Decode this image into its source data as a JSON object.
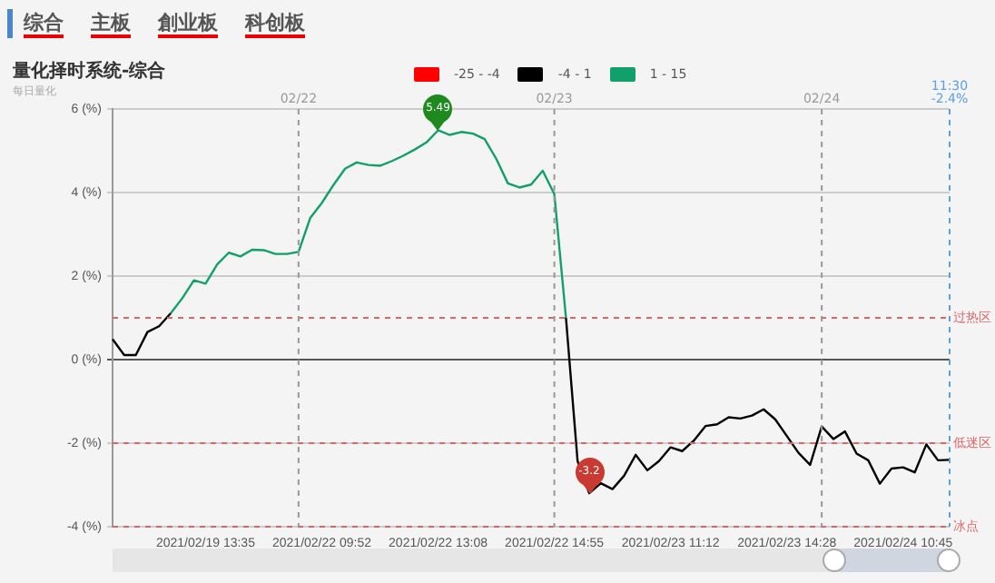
{
  "chart_data": {
    "type": "line",
    "title": "量化择时系统-综合",
    "subtitle": "每日量化",
    "annotations": [
      "综合",
      "主板",
      "創业板",
      "科创板",
      "02/22",
      "02/23",
      "02/24",
      "11:30\n-2.4%",
      {
        "text": "5.49",
        "x": "2021/02/22 13:08",
        "y": 5.49
      },
      {
        "text": "-3.2",
        "y": -3.2
      }
    ],
    "legend": "top",
    "grid": "y",
    "categories": [
      null,
      null,
      null,
      null,
      null,
      null,
      null,
      null,
      "2021/02/19 13:35",
      null,
      null,
      null,
      null,
      null,
      null,
      null,
      null,
      null,
      "2021/02/22 09:52",
      null,
      null,
      null,
      null,
      null,
      null,
      null,
      null,
      null,
      "2021/02/22 13:08",
      null,
      null,
      null,
      null,
      null,
      null,
      null,
      null,
      null,
      "2021/02/22 14:55",
      null,
      null,
      null,
      null,
      null,
      null,
      null,
      null,
      null,
      "2021/02/23 11:12",
      null,
      null,
      null,
      null,
      null,
      null,
      null,
      null,
      null,
      "2021/02/23 14:28",
      null,
      null,
      null,
      null,
      null,
      null,
      null,
      null,
      null,
      "2021/02/24 10:45",
      null,
      null,
      null,
      null
    ],
    "ylim": [
      -4,
      6
    ],
    "yticks": [
      {
        "value": -4,
        "label": "-4 (%)"
      },
      {
        "value": -2,
        "label": "-2 (%)"
      },
      {
        "value": 0,
        "label": "0 (%)"
      },
      {
        "value": 2,
        "label": "2 (%)"
      },
      {
        "value": 4,
        "label": "4 (%)"
      },
      {
        "value": 6,
        "label": "6 (%)"
      }
    ],
    "series": [
      {
        "name": "-25 - -4",
        "color": "#ff0000",
        "values": [
          null,
          null,
          null,
          null,
          null,
          null,
          null,
          null,
          null,
          null,
          null,
          null,
          null,
          null,
          null,
          null,
          null,
          null,
          null,
          null,
          null,
          null,
          null,
          null,
          null,
          null,
          null,
          null,
          null,
          null,
          null,
          null,
          null,
          null,
          null,
          null,
          null,
          null,
          null,
          null,
          null,
          null,
          null,
          null,
          null,
          null,
          null,
          null,
          null,
          null,
          null,
          null,
          null,
          null,
          null,
          null,
          null,
          null,
          null,
          null,
          null,
          null,
          null,
          null,
          null,
          null,
          null,
          null,
          null,
          null,
          null,
          null,
          null
        ]
      },
      {
        "name": "-4 - 1",
        "color": "#000000",
        "values": [
          0.49,
          0.11,
          0.11,
          0.66,
          0.8,
          1.11,
          null,
          null,
          null,
          null,
          null,
          null,
          null,
          null,
          null,
          null,
          null,
          null,
          null,
          null,
          null,
          null,
          null,
          null,
          null,
          null,
          null,
          null,
          null,
          null,
          null,
          null,
          null,
          null,
          null,
          null,
          null,
          null,
          null,
          1.0,
          -2.43,
          -3.2,
          -2.96,
          -3.1,
          -2.78,
          -2.28,
          -2.65,
          -2.43,
          -2.1,
          -2.19,
          -1.94,
          -1.59,
          -1.55,
          -1.38,
          -1.41,
          -1.34,
          -1.19,
          -1.43,
          -1.83,
          -2.23,
          -2.52,
          -1.6,
          -1.9,
          -1.72,
          -2.25,
          -2.41,
          -2.97,
          -2.61,
          -2.58,
          -2.7,
          -2.03,
          -2.41,
          -2.4
        ]
      },
      {
        "name": "1 - 15",
        "color": "#12a06a",
        "values": [
          null,
          null,
          null,
          null,
          null,
          1.11,
          1.47,
          1.9,
          1.82,
          2.28,
          2.56,
          2.47,
          2.63,
          2.62,
          2.53,
          2.53,
          2.58,
          3.39,
          3.75,
          4.18,
          4.57,
          4.72,
          4.66,
          4.64,
          4.75,
          4.88,
          5.03,
          5.2,
          5.49,
          5.38,
          5.45,
          5.41,
          5.28,
          4.81,
          4.22,
          4.12,
          4.19,
          4.52,
          3.96,
          1.0,
          null,
          null,
          null,
          null,
          null,
          null,
          null,
          null,
          null,
          null,
          null,
          null,
          null,
          null,
          null,
          null,
          null,
          null,
          null,
          null,
          null,
          null,
          null,
          null,
          null,
          null,
          null,
          null,
          null,
          null,
          null,
          null,
          null
        ]
      }
    ],
    "ref_lines": [
      {
        "axis": "y",
        "value": 1,
        "label": "过热区",
        "color": "#e06666",
        "line_style": "dashed"
      },
      {
        "axis": "y",
        "value": -2,
        "label": "低迷区",
        "color": "#e06666",
        "line_style": "dashed"
      },
      {
        "axis": "y",
        "value": -4,
        "label": "冰点",
        "color": "#e06666",
        "line_style": "dashed"
      }
    ]
  }
}
